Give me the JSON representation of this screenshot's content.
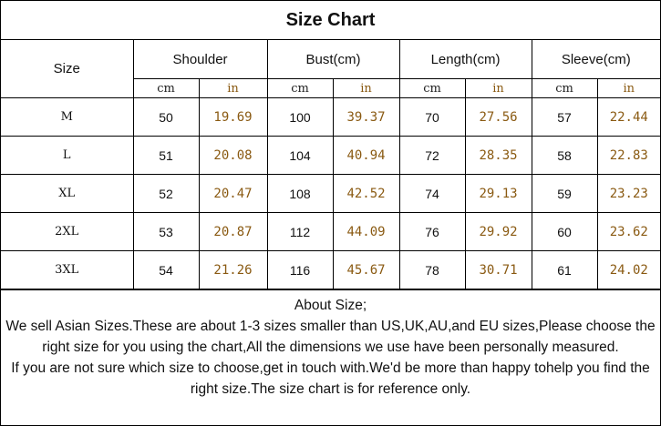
{
  "title": "Size Chart",
  "headers": {
    "size": "Size",
    "shoulder": "Shoulder",
    "bust": "Bust(cm)",
    "length": "Length(cm)",
    "sleeve": "Sleeve(cm)"
  },
  "units": {
    "cm": "cm",
    "in": "in"
  },
  "rows": [
    {
      "size": "M",
      "shoulder_cm": "50",
      "shoulder_in": "19.69",
      "bust_cm": "100",
      "bust_in": "39.37",
      "length_cm": "70",
      "length_in": "27.56",
      "sleeve_cm": "57",
      "sleeve_in": "22.44"
    },
    {
      "size": "L",
      "shoulder_cm": "51",
      "shoulder_in": "20.08",
      "bust_cm": "104",
      "bust_in": "40.94",
      "length_cm": "72",
      "length_in": "28.35",
      "sleeve_cm": "58",
      "sleeve_in": "22.83"
    },
    {
      "size": "XL",
      "shoulder_cm": "52",
      "shoulder_in": "20.47",
      "bust_cm": "108",
      "bust_in": "42.52",
      "length_cm": "74",
      "length_in": "29.13",
      "sleeve_cm": "59",
      "sleeve_in": "23.23"
    },
    {
      "size": "2XL",
      "shoulder_cm": "53",
      "shoulder_in": "20.87",
      "bust_cm": "112",
      "bust_in": "44.09",
      "length_cm": "76",
      "length_in": "29.92",
      "sleeve_cm": "60",
      "sleeve_in": "23.62"
    },
    {
      "size": "3XL",
      "shoulder_cm": "54",
      "shoulder_in": "21.26",
      "bust_cm": "116",
      "bust_in": "45.67",
      "length_cm": "78",
      "length_in": "30.71",
      "sleeve_cm": "61",
      "sleeve_in": "24.02"
    }
  ],
  "about": {
    "heading": "About Size;",
    "paragraph1": "We sell Asian Sizes.These are about 1-3 sizes smaller than US,UK,AU,and EU sizes,Please choose the right size for you using the chart,All the dimensions we use have been personally measured.",
    "paragraph2": "If you are not sure which size to choose,get in touch with.We'd be more than happy tohelp you find the right size.The size chart is for reference only."
  },
  "colors": {
    "inch_text": "#8a5a12",
    "border": "#000000"
  }
}
